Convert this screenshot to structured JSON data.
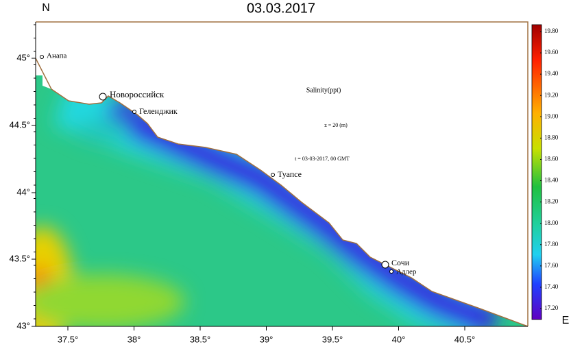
{
  "header": {
    "title": "03.03.2017",
    "north": "N",
    "east": "E"
  },
  "axes": {
    "lat_labels": [
      "45°",
      "44.5°",
      "44°",
      "43.5°",
      "43°"
    ],
    "lon_labels": [
      "37.5°",
      "38°",
      "38.5°",
      "39°",
      "39.5°",
      "40°",
      "40.5°"
    ]
  },
  "cities": [
    "Анапа",
    "Новороссийск",
    "Геленджик",
    "Туапсе",
    "Сочи",
    "Адлер"
  ],
  "annotations": [
    "Salinity(ppt)",
    "z = 20 (m)",
    "t = 03-03-2017, 00 GMT"
  ],
  "colorbar": {
    "labels": [
      "19.80",
      "19.60",
      "19.40",
      "19.20",
      "19.00",
      "18.80",
      "18.60",
      "18.40",
      "18.20",
      "18.00",
      "17.80",
      "17.60",
      "17.40",
      "17.20"
    ]
  }
}
